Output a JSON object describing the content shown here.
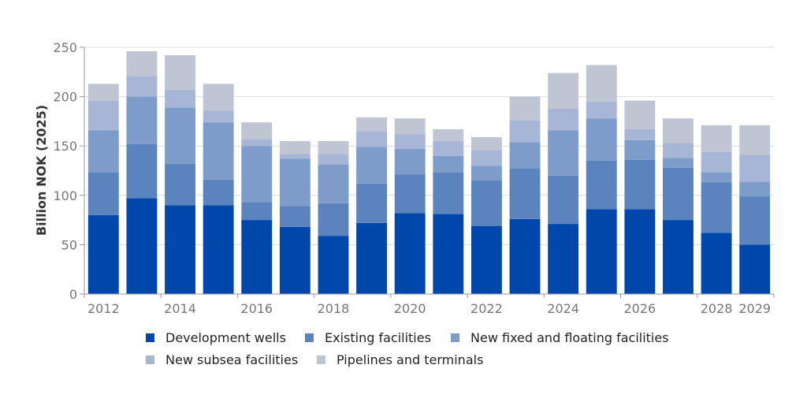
{
  "chart_data": {
    "type": "bar",
    "stacked": true,
    "title": "",
    "xlabel": "",
    "ylabel": "Billion NOK (2025)",
    "ylim": [
      0,
      250
    ],
    "yticks": [
      0,
      50,
      100,
      150,
      200,
      250
    ],
    "grid": true,
    "legend_position": "bottom",
    "categories": [
      "2012",
      "2013",
      "2014",
      "2015",
      "2016",
      "2017",
      "2018",
      "2019",
      "2020",
      "2021",
      "2022",
      "2023",
      "2024",
      "2025",
      "2026",
      "2027",
      "2028",
      "2029"
    ],
    "xtick_labels": [
      "2012",
      "2014",
      "2016",
      "2018",
      "2020",
      "2022",
      "2024",
      "2026",
      "2028",
      "2029"
    ],
    "series": [
      {
        "name": "Development wells",
        "color": "#0047ab",
        "values": [
          80,
          97,
          90,
          90,
          75,
          68,
          59,
          72,
          82,
          81,
          69,
          76,
          71,
          86,
          86,
          75,
          62,
          50
        ]
      },
      {
        "name": "Existing facilities",
        "color": "#5b84be",
        "values": [
          43,
          55,
          42,
          26,
          18,
          21,
          33,
          40,
          39,
          42,
          46,
          51,
          49,
          49,
          50,
          53,
          51,
          49
        ]
      },
      {
        "name": "New fixed and floating facilities",
        "color": "#7d9cca",
        "values": [
          43,
          48,
          57,
          58,
          57,
          48,
          39,
          37,
          26,
          17,
          15,
          27,
          46,
          43,
          20,
          10,
          10,
          15
        ]
      },
      {
        "name": "New subsea facilities",
        "color": "#a7b6d6",
        "values": [
          30,
          21,
          18,
          12,
          7,
          5,
          11,
          16,
          15,
          15,
          16,
          22,
          22,
          17,
          11,
          15,
          21,
          27
        ]
      },
      {
        "name": "Pipelines and terminals",
        "color": "#c0c5d3",
        "values": [
          17,
          25,
          35,
          27,
          17,
          13,
          13,
          14,
          16,
          12,
          13,
          24,
          36,
          37,
          29,
          25,
          27,
          30
        ]
      }
    ]
  }
}
